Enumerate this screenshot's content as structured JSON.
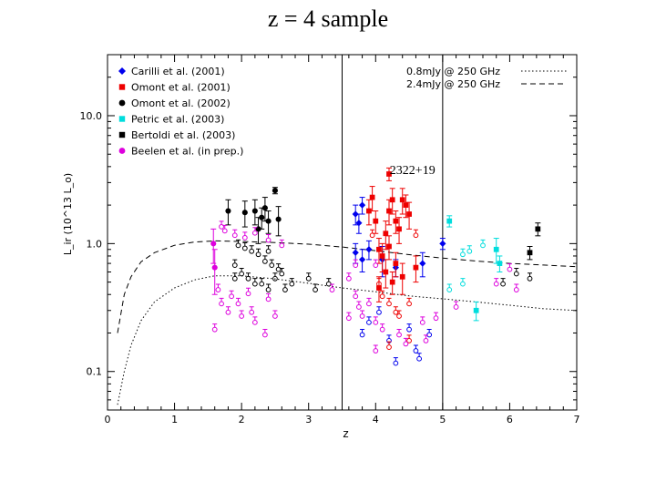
{
  "slide": {
    "title": "z = 4 sample"
  },
  "chart_data": {
    "type": "scatter",
    "title": "",
    "xlabel": "z",
    "ylabel": "L_ir (10^13 L_o)",
    "xlim": [
      0,
      7
    ],
    "ylim": [
      0.05,
      30
    ],
    "yscale": "log",
    "grid": false,
    "x_ticks": [
      {
        "value": 0,
        "label": "0"
      },
      {
        "value": 1,
        "label": "1"
      },
      {
        "value": 2,
        "label": "2"
      },
      {
        "value": 3,
        "label": "3"
      },
      {
        "value": 4,
        "label": "4"
      },
      {
        "value": 5,
        "label": "5"
      },
      {
        "value": 6,
        "label": "6"
      },
      {
        "value": 7,
        "label": "7"
      }
    ],
    "y_ticks": [
      {
        "value": 0.1,
        "label": "0.1"
      },
      {
        "value": 1.0,
        "label": "1.0"
      },
      {
        "value": 10.0,
        "label": "10.0"
      }
    ],
    "vertical_lines": [
      3.5,
      5.0
    ],
    "legend": [
      {
        "label": "Carilli et al. (2001)",
        "color": "#0000ee",
        "marker": "diamond"
      },
      {
        "label": "Omont et al. (2001)",
        "color": "#ee0000",
        "marker": "square"
      },
      {
        "label": "Omont et al. (2002)",
        "color": "#000000",
        "marker": "circle"
      },
      {
        "label": "Petric et al. (2003)",
        "color": "#00dddd",
        "marker": "square"
      },
      {
        "label": "Bertoldi et al. (2003)",
        "color": "#000000",
        "marker": "square"
      },
      {
        "label": "Beelen et al. (in prep.)",
        "color": "#dd00dd",
        "marker": "circle"
      }
    ],
    "line_legend": [
      {
        "label": "0.8mJy @ 250 GHz",
        "style": "dotted"
      },
      {
        "label": "2.4mJy @ 250 GHz",
        "style": "dashed"
      }
    ],
    "annotations": [
      {
        "text": "2322+19",
        "x": 4.55,
        "y": 3.5
      }
    ],
    "curves": [
      {
        "name": "2.4mJy @ 250 GHz",
        "style": "dashed",
        "x": [
          0.15,
          0.25,
          0.35,
          0.5,
          0.7,
          1.0,
          1.3,
          1.6,
          2.0,
          2.5,
          3.0,
          3.5,
          4.0,
          4.5,
          5.0,
          5.5,
          6.0,
          6.5,
          7.0
        ],
        "y": [
          0.2,
          0.4,
          0.55,
          0.72,
          0.85,
          0.97,
          1.03,
          1.05,
          1.04,
          1.02,
          0.99,
          0.94,
          0.88,
          0.82,
          0.77,
          0.73,
          0.7,
          0.68,
          0.66
        ]
      },
      {
        "name": "0.8mJy @ 250 GHz",
        "style": "dotted",
        "x": [
          0.15,
          0.25,
          0.35,
          0.5,
          0.7,
          1.0,
          1.3,
          1.6,
          2.0,
          2.5,
          3.0,
          3.5,
          4.0,
          4.5,
          5.0,
          5.5,
          6.0,
          6.5,
          7.0
        ],
        "y": [
          0.055,
          0.1,
          0.16,
          0.25,
          0.35,
          0.45,
          0.52,
          0.56,
          0.56,
          0.53,
          0.49,
          0.45,
          0.42,
          0.39,
          0.37,
          0.35,
          0.33,
          0.31,
          0.3
        ]
      }
    ],
    "series": [
      {
        "name": "Carilli et al. (2001)",
        "color": "#0000ee",
        "marker": "diamond",
        "detections": [
          [
            3.7,
            1.7,
            0.3
          ],
          [
            3.75,
            1.45,
            0.25
          ],
          [
            3.8,
            2.0,
            0.3
          ],
          [
            3.9,
            0.9,
            0.15
          ],
          [
            3.7,
            0.85,
            0.15
          ],
          [
            3.8,
            0.75,
            0.15
          ],
          [
            4.1,
            0.75,
            0.2
          ],
          [
            4.3,
            0.65,
            0.1
          ],
          [
            4.7,
            0.7,
            0.15
          ],
          [
            5.0,
            1.0,
            0.1
          ]
        ],
        "upper_limits": [
          [
            3.8,
            0.2
          ],
          [
            3.9,
            0.25
          ],
          [
            4.05,
            0.3
          ],
          [
            4.2,
            0.18
          ],
          [
            4.3,
            0.12
          ],
          [
            4.6,
            0.15
          ],
          [
            4.5,
            0.22
          ],
          [
            4.65,
            0.13
          ],
          [
            4.8,
            0.2
          ]
        ]
      },
      {
        "name": "Omont et al. (2001)",
        "color": "#ee0000",
        "marker": "square",
        "detections": [
          [
            4.2,
            3.5,
            0.4
          ],
          [
            3.9,
            1.8,
            0.4
          ],
          [
            3.95,
            2.3,
            0.5
          ],
          [
            4.0,
            1.5,
            0.3
          ],
          [
            4.15,
            1.2,
            0.3
          ],
          [
            4.2,
            1.8,
            0.4
          ],
          [
            4.25,
            2.2,
            0.5
          ],
          [
            4.3,
            1.5,
            0.3
          ],
          [
            4.35,
            1.3,
            0.3
          ],
          [
            4.4,
            2.2,
            0.5
          ],
          [
            4.45,
            2.0,
            0.4
          ],
          [
            4.5,
            1.7,
            0.4
          ],
          [
            4.05,
            0.9,
            0.2
          ],
          [
            4.1,
            0.8,
            0.2
          ],
          [
            4.2,
            0.95,
            0.2
          ],
          [
            4.15,
            0.6,
            0.15
          ],
          [
            4.3,
            0.7,
            0.15
          ],
          [
            4.4,
            0.55,
            0.15
          ],
          [
            4.05,
            0.45,
            0.1
          ],
          [
            4.6,
            0.65,
            0.15
          ],
          [
            4.25,
            0.5,
            0.1
          ]
        ],
        "upper_limits": [
          [
            3.95,
            1.2
          ],
          [
            4.05,
            0.5
          ],
          [
            4.1,
            0.4
          ],
          [
            4.2,
            0.35
          ],
          [
            4.3,
            0.3
          ],
          [
            4.35,
            0.28
          ],
          [
            4.5,
            0.35
          ],
          [
            4.6,
            1.2
          ],
          [
            4.5,
            0.18
          ],
          [
            4.2,
            0.16
          ]
        ]
      },
      {
        "name": "Omont et al. (2002)",
        "color": "#000000",
        "marker": "circle",
        "detections": [
          [
            1.8,
            1.8,
            0.4
          ],
          [
            2.05,
            1.75,
            0.4
          ],
          [
            2.2,
            1.8,
            0.4
          ],
          [
            2.3,
            1.6,
            0.3
          ],
          [
            2.4,
            1.5,
            0.3
          ],
          [
            2.55,
            1.55,
            0.4
          ],
          [
            2.25,
            1.3,
            0.3
          ],
          [
            2.35,
            1.9,
            0.4
          ],
          [
            2.5,
            2.6,
            0.15
          ]
        ],
        "upper_limits": [
          [
            1.95,
            1.0
          ],
          [
            2.05,
            0.95
          ],
          [
            2.15,
            0.9
          ],
          [
            2.25,
            0.85
          ],
          [
            2.35,
            0.75
          ],
          [
            2.45,
            0.7
          ],
          [
            2.55,
            0.65
          ],
          [
            1.9,
            0.7
          ],
          [
            2.0,
            0.6
          ],
          [
            2.1,
            0.55
          ],
          [
            2.2,
            0.5
          ],
          [
            2.3,
            0.5
          ],
          [
            2.4,
            0.45
          ],
          [
            2.5,
            0.55
          ],
          [
            2.6,
            0.6
          ],
          [
            2.65,
            0.45
          ],
          [
            2.75,
            0.5
          ],
          [
            3.0,
            0.55
          ],
          [
            3.3,
            0.5
          ],
          [
            3.1,
            0.45
          ],
          [
            1.9,
            0.55
          ],
          [
            2.4,
            0.9
          ]
        ]
      },
      {
        "name": "Petric et al. (2003)",
        "color": "#00dddd",
        "marker": "square",
        "detections": [
          [
            5.1,
            1.5,
            0.15
          ],
          [
            5.5,
            0.3,
            0.05
          ],
          [
            5.8,
            0.9,
            0.2
          ],
          [
            5.85,
            0.7,
            0.1
          ]
        ],
        "upper_limits": [
          [
            5.3,
            0.85
          ],
          [
            5.4,
            0.9
          ],
          [
            5.6,
            1.0
          ],
          [
            5.1,
            0.45
          ],
          [
            5.3,
            0.5
          ]
        ]
      },
      {
        "name": "Bertoldi et al. (2003)",
        "color": "#000000",
        "marker": "square",
        "detections": [
          [
            6.3,
            0.85,
            0.1
          ],
          [
            6.42,
            1.3,
            0.15
          ]
        ],
        "upper_limits": [
          [
            6.1,
            0.6
          ],
          [
            5.9,
            0.5
          ],
          [
            6.3,
            0.55
          ]
        ]
      },
      {
        "name": "Beelen et al. (in prep.)",
        "color": "#dd00dd",
        "marker": "circle",
        "detections": [
          [
            1.58,
            1.0,
            0.3
          ],
          [
            1.6,
            0.65,
            0.25
          ]
        ],
        "upper_limits": [
          [
            1.7,
            1.4
          ],
          [
            1.75,
            1.3
          ],
          [
            1.9,
            1.2
          ],
          [
            2.05,
            1.15
          ],
          [
            2.2,
            1.25
          ],
          [
            2.4,
            1.1
          ],
          [
            2.6,
            1.0
          ],
          [
            1.65,
            0.45
          ],
          [
            1.7,
            0.35
          ],
          [
            1.8,
            0.3
          ],
          [
            1.85,
            0.4
          ],
          [
            1.95,
            0.35
          ],
          [
            2.0,
            0.28
          ],
          [
            2.1,
            0.42
          ],
          [
            2.15,
            0.3
          ],
          [
            2.2,
            0.25
          ],
          [
            2.4,
            0.38
          ],
          [
            2.5,
            0.28
          ],
          [
            1.6,
            0.22
          ],
          [
            2.35,
            0.2
          ],
          [
            3.35,
            0.45
          ],
          [
            3.6,
            0.55
          ],
          [
            3.7,
            0.4
          ],
          [
            3.75,
            0.33
          ],
          [
            3.8,
            0.28
          ],
          [
            3.9,
            0.35
          ],
          [
            4.0,
            0.25
          ],
          [
            4.1,
            0.22
          ],
          [
            4.35,
            0.2
          ],
          [
            4.45,
            0.17
          ],
          [
            4.0,
            0.15
          ],
          [
            3.6,
            0.27
          ],
          [
            4.7,
            0.25
          ],
          [
            4.9,
            0.27
          ],
          [
            5.2,
            0.33
          ],
          [
            4.75,
            0.18
          ],
          [
            6.0,
            0.65
          ],
          [
            6.1,
            0.45
          ],
          [
            5.8,
            0.5
          ],
          [
            3.7,
            0.7
          ],
          [
            4.0,
            0.7
          ]
        ]
      }
    ]
  }
}
